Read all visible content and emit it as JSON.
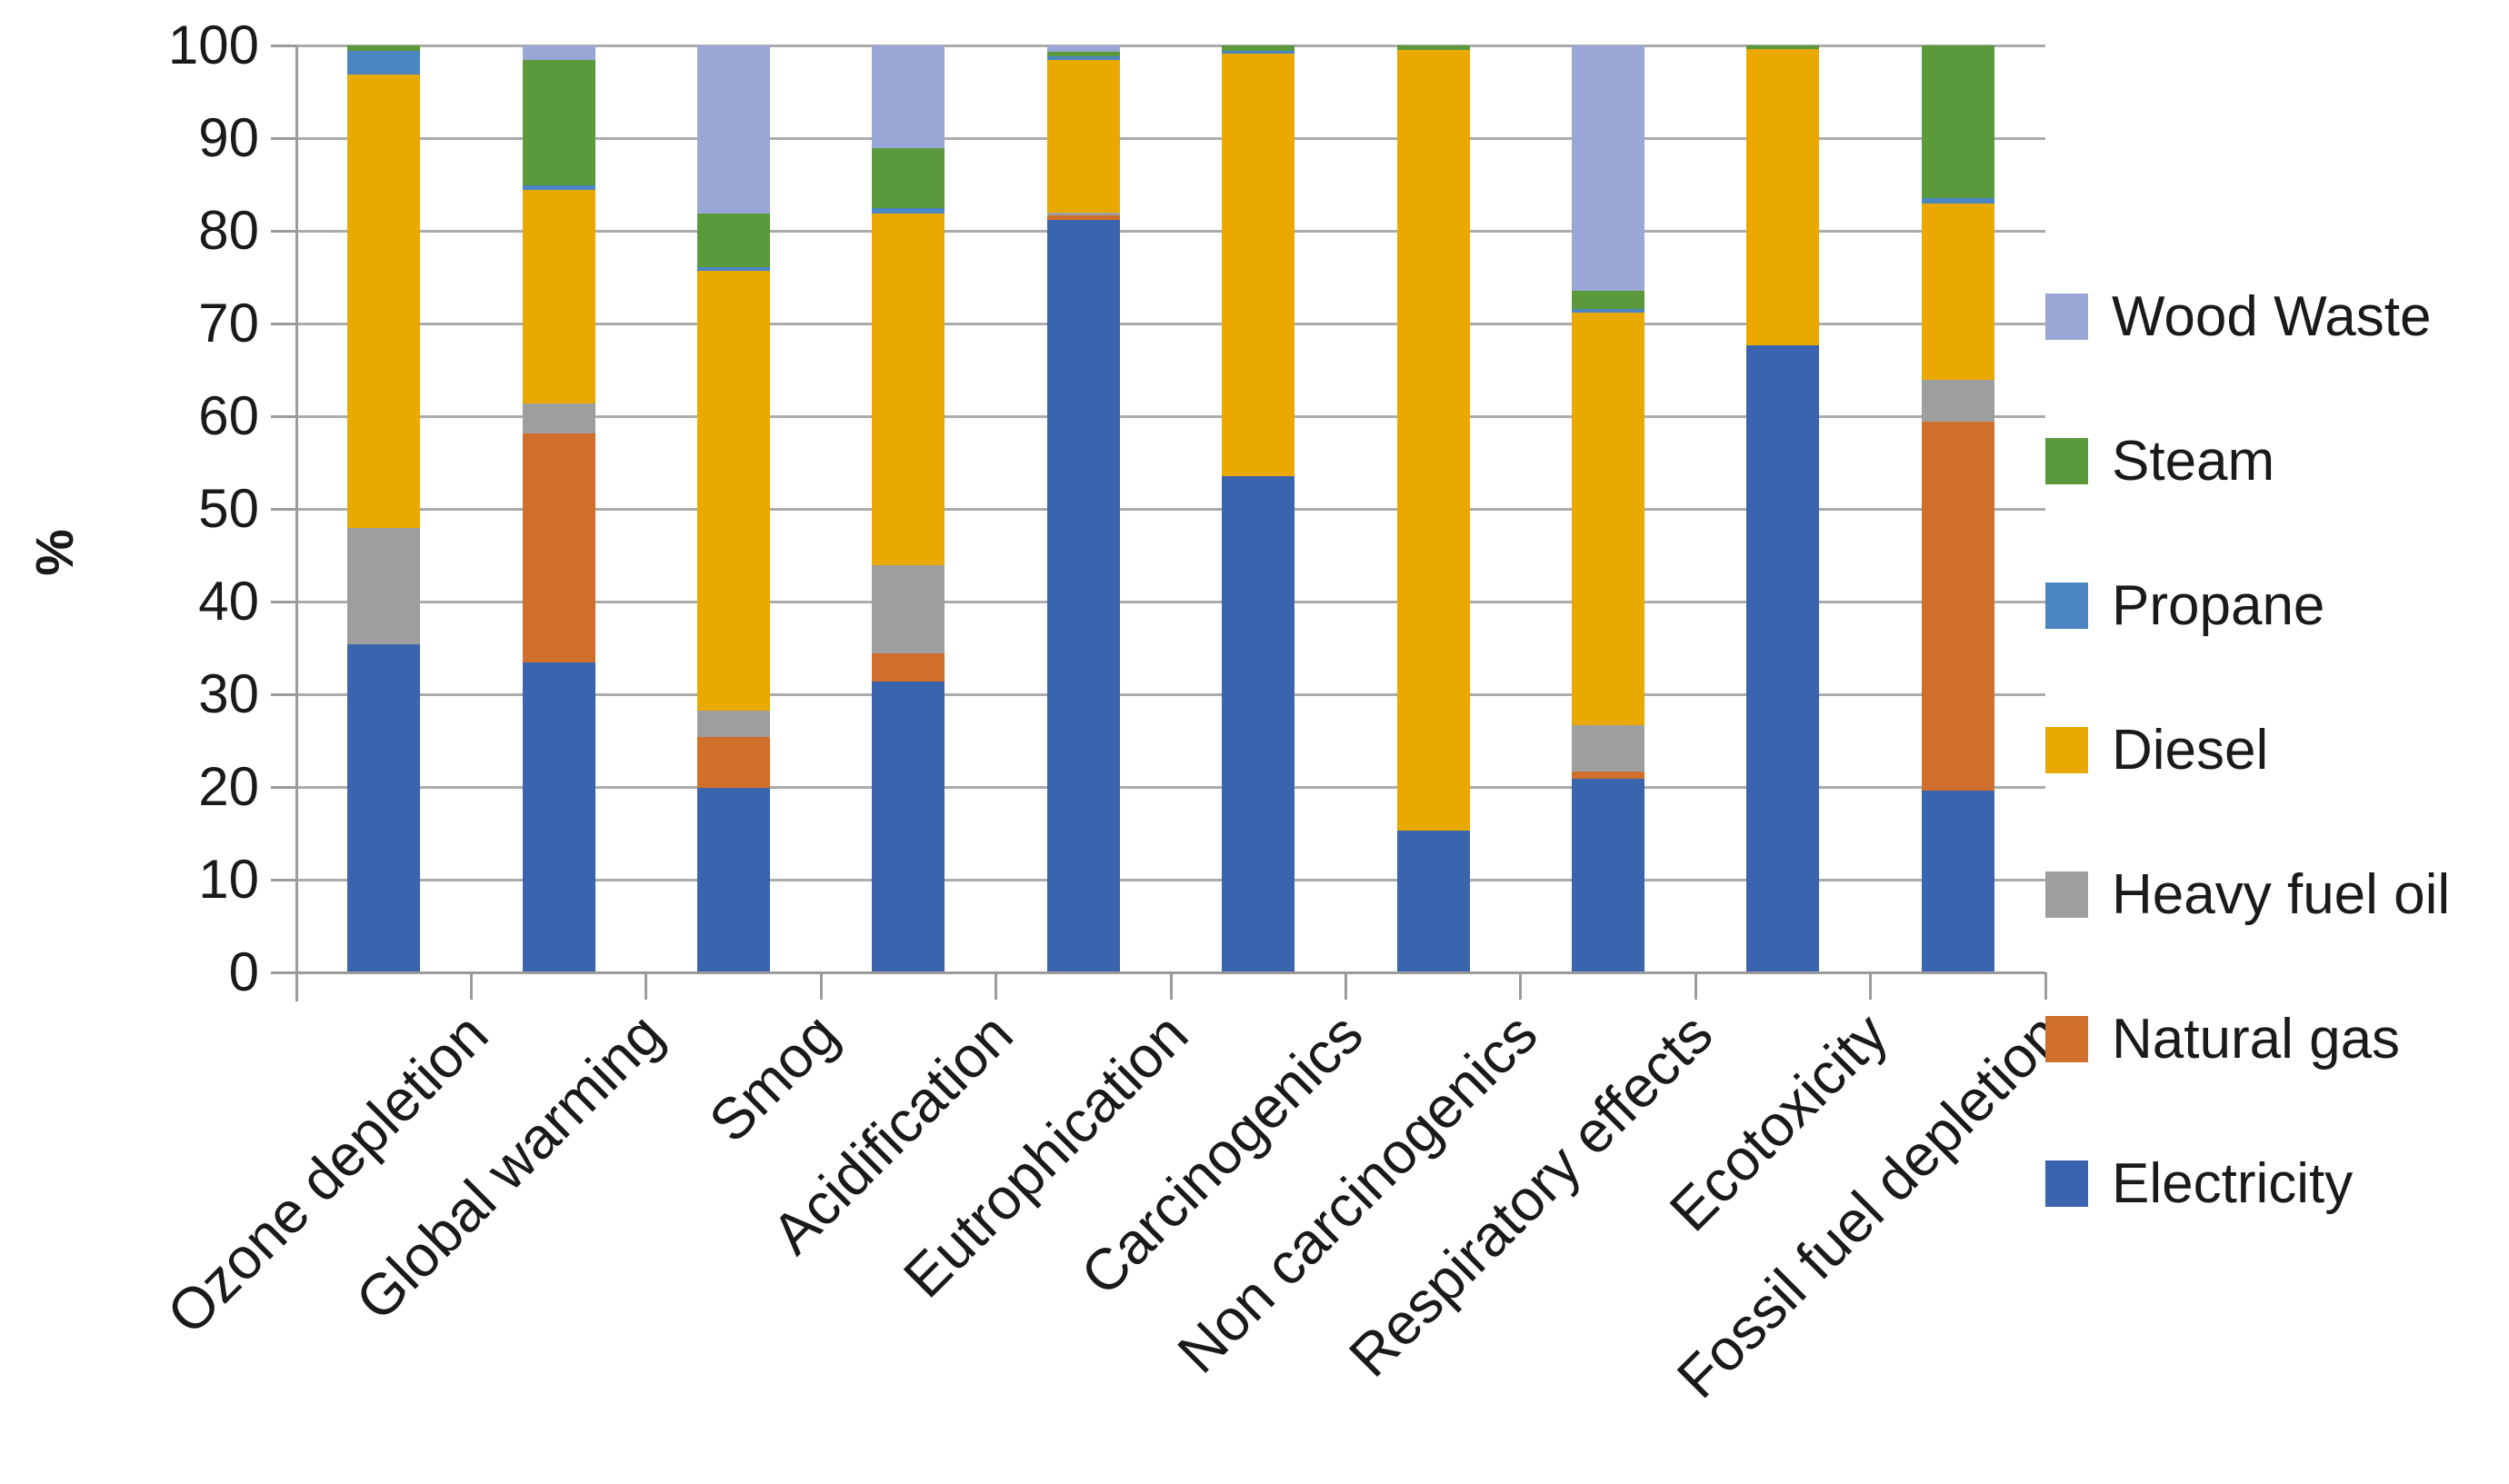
{
  "chart_data": {
    "type": "bar",
    "stacking": "percent",
    "title": "",
    "xlabel": "",
    "ylabel": "%",
    "grid": "horizontal",
    "y_axis": {
      "min": 0,
      "max": 100,
      "step": 10,
      "tick_labels": [
        "0",
        "10",
        "20",
        "30",
        "40",
        "50",
        "60",
        "70",
        "80",
        "90",
        "100"
      ]
    },
    "categories": [
      "Ozone depletion",
      "Global warming",
      "Smog",
      "Acidification",
      "Eutrophication",
      "Carcinogenics",
      "Non carcinogenics",
      "Respiratory effects",
      "Ecotoxicity",
      "Fossil fuel depletion"
    ],
    "series": [
      {
        "name": "Electricity",
        "color": "#3a64ae",
        "values": [
          35.5,
          33.5,
          20.0,
          31.5,
          81.3,
          53.6,
          15.4,
          21.0,
          67.7,
          19.7
        ]
      },
      {
        "name": "Natural gas",
        "color": "#d06e2c",
        "values": [
          0,
          24.7,
          5.5,
          3.0,
          0.5,
          0,
          0,
          0.8,
          0,
          39.8
        ]
      },
      {
        "name": "Heavy fuel oil",
        "color": "#9e9e9e",
        "values": [
          12.5,
          3.3,
          2.8,
          9.5,
          0.3,
          0,
          0,
          5.0,
          0,
          4.5
        ]
      },
      {
        "name": "Diesel",
        "color": "#e9a900",
        "values": [
          49.0,
          23.0,
          47.5,
          38.0,
          16.4,
          45.6,
          84.2,
          44.5,
          32.0,
          19.0
        ]
      },
      {
        "name": "Propane",
        "color": "#4b86c3",
        "values": [
          2.5,
          0.5,
          0.4,
          0.5,
          0.4,
          0.3,
          0,
          0.4,
          0,
          0.6
        ]
      },
      {
        "name": "Steam",
        "color": "#5b9a3c",
        "values": [
          0.5,
          13.5,
          5.8,
          6.5,
          0.5,
          0.5,
          0.4,
          1.9,
          0.3,
          16.4
        ]
      },
      {
        "name": "Wood Waste",
        "color": "#9aa7d6",
        "values": [
          0,
          1.5,
          18.0,
          11.0,
          0.6,
          0,
          0,
          26.4,
          0,
          0
        ]
      }
    ],
    "legend": {
      "position": "right",
      "order_top_to_bottom": [
        "Wood Waste",
        "Steam",
        "Propane",
        "Diesel",
        "Heavy fuel oil",
        "Natural gas",
        "Electricity"
      ]
    }
  }
}
